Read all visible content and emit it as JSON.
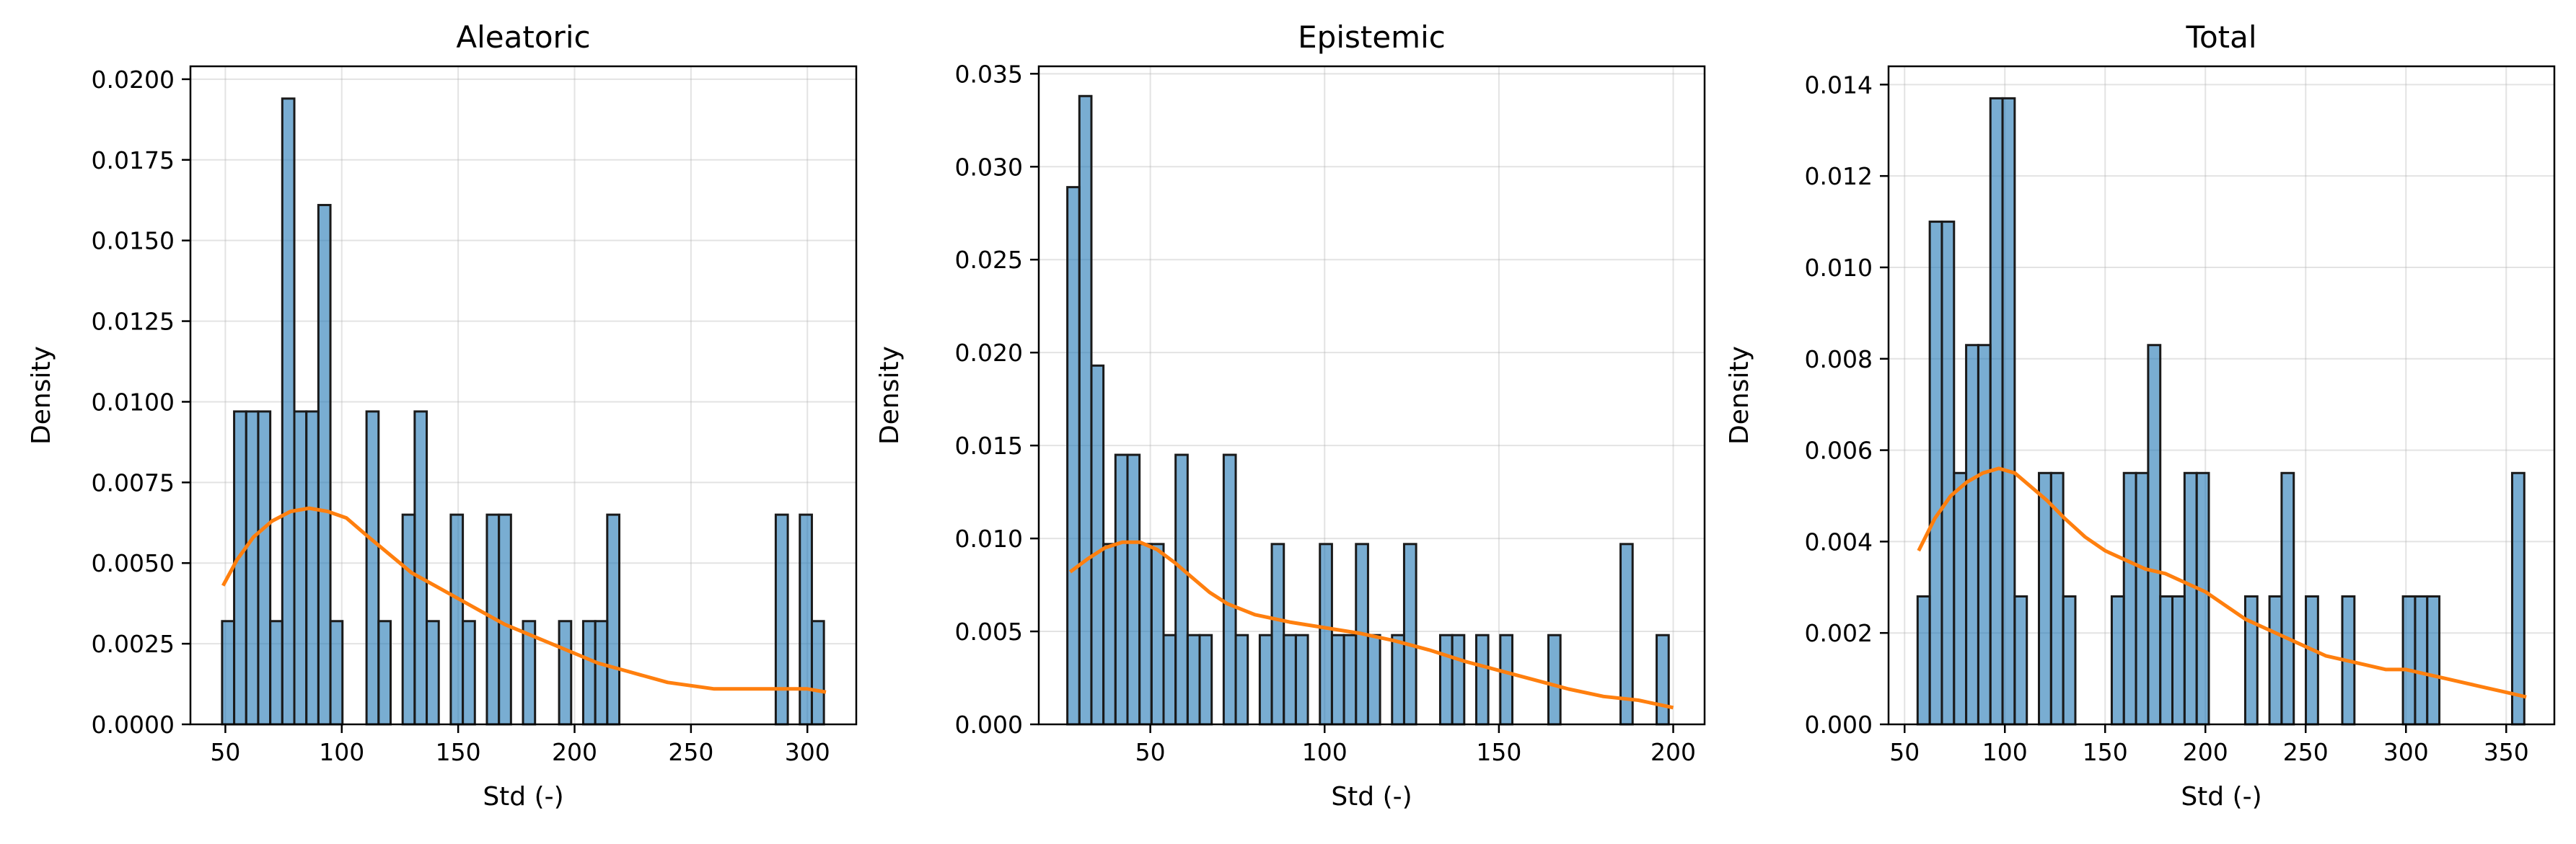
{
  "figure": {
    "colors": {
      "bar_fill": "#1f77b4",
      "bar_edge": "#1a1a1a",
      "kde_line": "#ff7f0e",
      "grid": "#b0b0b0"
    }
  },
  "chart_data": [
    {
      "type": "bar",
      "title": "Aleatoric",
      "xlabel": "Std (-)",
      "ylabel": "Density",
      "xlim": [
        35,
        321
      ],
      "ylim": [
        0,
        0.0204
      ],
      "xticks": [
        50,
        100,
        150,
        200,
        250,
        300
      ],
      "yticks": [
        0.0,
        0.0025,
        0.005,
        0.0075,
        0.01,
        0.0125,
        0.015,
        0.0175,
        0.02
      ],
      "ytick_labels": [
        "0.0000",
        "0.0025",
        "0.0050",
        "0.0075",
        "0.0100",
        "0.0125",
        "0.0150",
        "0.0175",
        "0.0200"
      ],
      "grid": true,
      "bin_start": 48.6,
      "bin_width": 5.17,
      "hist": [
        0.0032,
        0.0097,
        0.0097,
        0.0097,
        0.0032,
        0.0194,
        0.0097,
        0.0097,
        0.0161,
        0.0032,
        0,
        0,
        0.0097,
        0.0032,
        0,
        0.0065,
        0.0097,
        0.0032,
        0,
        0.0065,
        0.0032,
        0,
        0.0065,
        0.0065,
        0,
        0.0032,
        0,
        0,
        0.0032,
        0,
        0.0032,
        0.0032,
        0.0065,
        0,
        0,
        0,
        0,
        0,
        0,
        0,
        0,
        0,
        0,
        0,
        0,
        0,
        0.0065,
        0,
        0.0065,
        0.0032
      ],
      "kde": {
        "x": [
          49,
          55,
          62,
          70,
          78,
          86,
          94,
          102,
          110,
          120,
          130,
          140,
          150,
          160,
          170,
          180,
          190,
          200,
          210,
          220,
          230,
          240,
          250,
          260,
          270,
          280,
          290,
          300,
          308
        ],
        "y": [
          0.0043,
          0.0051,
          0.0058,
          0.0063,
          0.0066,
          0.0067,
          0.0066,
          0.0064,
          0.0059,
          0.0053,
          0.0047,
          0.0043,
          0.0039,
          0.0035,
          0.0031,
          0.0028,
          0.0025,
          0.0022,
          0.0019,
          0.0017,
          0.0015,
          0.0013,
          0.0012,
          0.0011,
          0.0011,
          0.0011,
          0.0011,
          0.0011,
          0.001
        ]
      }
    },
    {
      "type": "bar",
      "title": "Epistemic",
      "xlabel": "Std (-)",
      "ylabel": "Density",
      "xlim": [
        18,
        209
      ],
      "ylim": [
        0,
        0.0354
      ],
      "xticks": [
        50,
        100,
        150,
        200
      ],
      "yticks": [
        0.0,
        0.005,
        0.01,
        0.015,
        0.02,
        0.025,
        0.03,
        0.035
      ],
      "ytick_labels": [
        "0.000",
        "0.005",
        "0.010",
        "0.015",
        "0.020",
        "0.025",
        "0.030",
        "0.035"
      ],
      "grid": true,
      "bin_start": 26.2,
      "bin_width": 3.45,
      "hist": [
        0.0289,
        0.0338,
        0.0193,
        0.0097,
        0.0145,
        0.0145,
        0.0097,
        0.0097,
        0.0048,
        0.0145,
        0.0048,
        0.0048,
        0,
        0.0145,
        0.0048,
        0,
        0.0048,
        0.0097,
        0.0048,
        0.0048,
        0,
        0.0097,
        0.0048,
        0.0048,
        0.0097,
        0.0048,
        0,
        0.0048,
        0.0097,
        0,
        0,
        0.0048,
        0.0048,
        0,
        0.0048,
        0,
        0.0048,
        0,
        0,
        0,
        0.0048,
        0,
        0,
        0,
        0,
        0,
        0.0097,
        0,
        0,
        0.0048
      ],
      "kde": {
        "x": [
          27,
          32,
          37,
          42,
          47,
          52,
          57,
          62,
          67,
          72,
          80,
          90,
          100,
          110,
          120,
          130,
          140,
          150,
          160,
          170,
          180,
          190,
          200
        ],
        "y": [
          0.0082,
          0.0089,
          0.0095,
          0.0098,
          0.0098,
          0.0094,
          0.0087,
          0.0079,
          0.0071,
          0.0065,
          0.0059,
          0.0055,
          0.0052,
          0.0049,
          0.0045,
          0.004,
          0.0034,
          0.0029,
          0.0024,
          0.0019,
          0.0015,
          0.0013,
          0.0009
        ]
      }
    },
    {
      "type": "bar",
      "title": "Total",
      "xlabel": "Std (-)",
      "ylabel": "Density",
      "xlim": [
        42,
        374
      ],
      "ylim": [
        0,
        0.0144
      ],
      "xticks": [
        50,
        100,
        150,
        200,
        250,
        300,
        350
      ],
      "yticks": [
        0.0,
        0.002,
        0.004,
        0.006,
        0.008,
        0.01,
        0.012,
        0.014
      ],
      "ytick_labels": [
        "0.000",
        "0.002",
        "0.004",
        "0.006",
        "0.008",
        "0.010",
        "0.012",
        "0.014"
      ],
      "grid": true,
      "bin_start": 56.5,
      "bin_width": 6.05,
      "hist": [
        0.0028,
        0.011,
        0.011,
        0.0055,
        0.0083,
        0.0083,
        0.0137,
        0.0137,
        0.0028,
        0,
        0.0055,
        0.0055,
        0.0028,
        0,
        0,
        0,
        0.0028,
        0.0055,
        0.0055,
        0.0083,
        0.0028,
        0.0028,
        0.0055,
        0.0055,
        0,
        0,
        0,
        0.0028,
        0,
        0.0028,
        0.0055,
        0,
        0.0028,
        0,
        0,
        0.0028,
        0,
        0,
        0,
        0,
        0.0028,
        0.0028,
        0.0028,
        0,
        0,
        0,
        0,
        0,
        0,
        0.0055
      ],
      "kde": {
        "x": [
          57,
          65,
          73,
          81,
          89,
          97,
          105,
          113,
          121,
          130,
          140,
          150,
          160,
          170,
          180,
          190,
          200,
          210,
          220,
          230,
          240,
          250,
          260,
          270,
          280,
          290,
          300,
          310,
          320,
          330,
          340,
          350,
          360
        ],
        "y": [
          0.0038,
          0.0045,
          0.005,
          0.0053,
          0.0055,
          0.0056,
          0.0055,
          0.0052,
          0.0049,
          0.0045,
          0.0041,
          0.0038,
          0.0036,
          0.0034,
          0.0033,
          0.0031,
          0.0029,
          0.0026,
          0.0023,
          0.0021,
          0.0019,
          0.0017,
          0.0015,
          0.0014,
          0.0013,
          0.0012,
          0.0012,
          0.0011,
          0.001,
          0.0009,
          0.0008,
          0.0007,
          0.0006
        ]
      }
    }
  ]
}
